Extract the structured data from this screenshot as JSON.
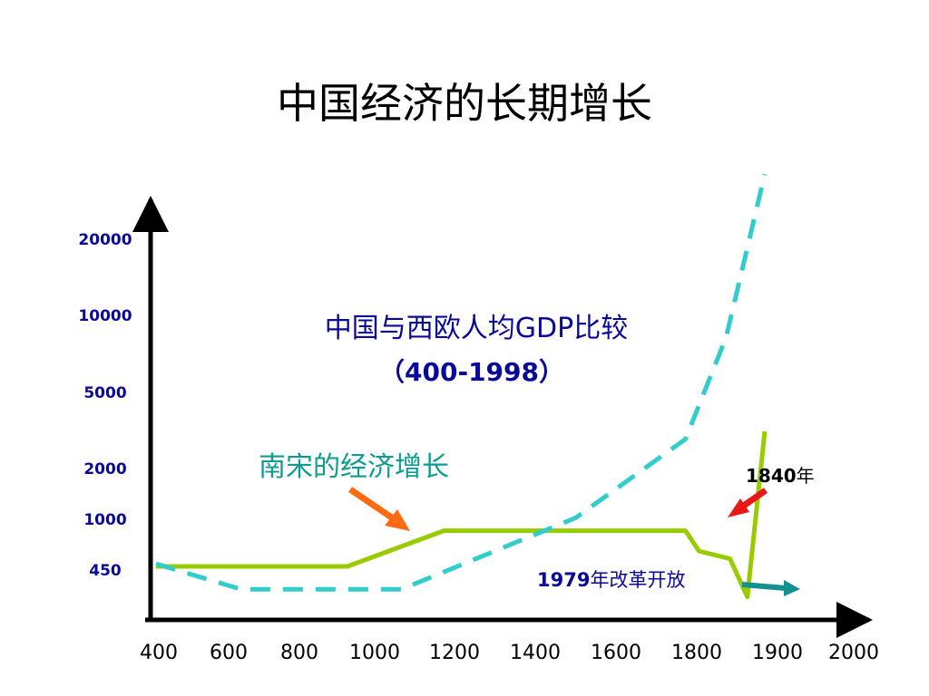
{
  "page_title": "中国经济的长期增长",
  "chart_data": {
    "type": "line",
    "title_line1": "中国与西欧人均GDP比较",
    "title_line2": "（400-1998）",
    "xlabel": "",
    "ylabel": "",
    "categories": [
      "400",
      "600",
      "800",
      "1000",
      "1200",
      "1400",
      "1600",
      "1800",
      "1900",
      "2000"
    ],
    "y_tick_labels": [
      "450",
      "1000",
      "2000",
      "5000",
      "10000",
      "20000"
    ],
    "y_tick_levels": [
      1.0,
      1.95,
      2.95,
      4.45,
      5.95,
      7.45
    ],
    "ylim": [
      0,
      9.1
    ],
    "series": [
      {
        "style": "solid",
        "color": "#99cc00",
        "points": [
          [
            0,
            1.05
          ],
          [
            4.95,
            1.05
          ],
          [
            7.45,
            1.75
          ],
          [
            13.7,
            1.75
          ],
          [
            14.05,
            1.35
          ],
          [
            14.85,
            1.2
          ],
          [
            15.3,
            0.45
          ],
          [
            15.75,
            3.7
          ]
        ]
      },
      {
        "style": "dashed",
        "color": "#33cccc",
        "points": [
          [
            0,
            1.1
          ],
          [
            2.2,
            0.6
          ],
          [
            6.35,
            0.6
          ],
          [
            10.85,
            2.0
          ],
          [
            13.7,
            3.55
          ],
          [
            14.75,
            5.55
          ],
          [
            15.75,
            8.75
          ]
        ]
      }
    ],
    "annotations": [
      {
        "text": "南宋的经济增长",
        "color": "#0e9c8f"
      },
      {
        "text_num": "1840",
        "text_cjk": "年",
        "color": "#000000"
      },
      {
        "text_num": "1979",
        "text_cjk": "年改革开放",
        "color": "#0a0a9a"
      }
    ],
    "colors": {
      "axis": "#000000",
      "tick_label": "#0a0a9a",
      "title_text": "#0a0a9a",
      "arrow_song": "#ff6a13",
      "arrow_1840": "#e81818",
      "arrow_1979": "#139090"
    }
  }
}
